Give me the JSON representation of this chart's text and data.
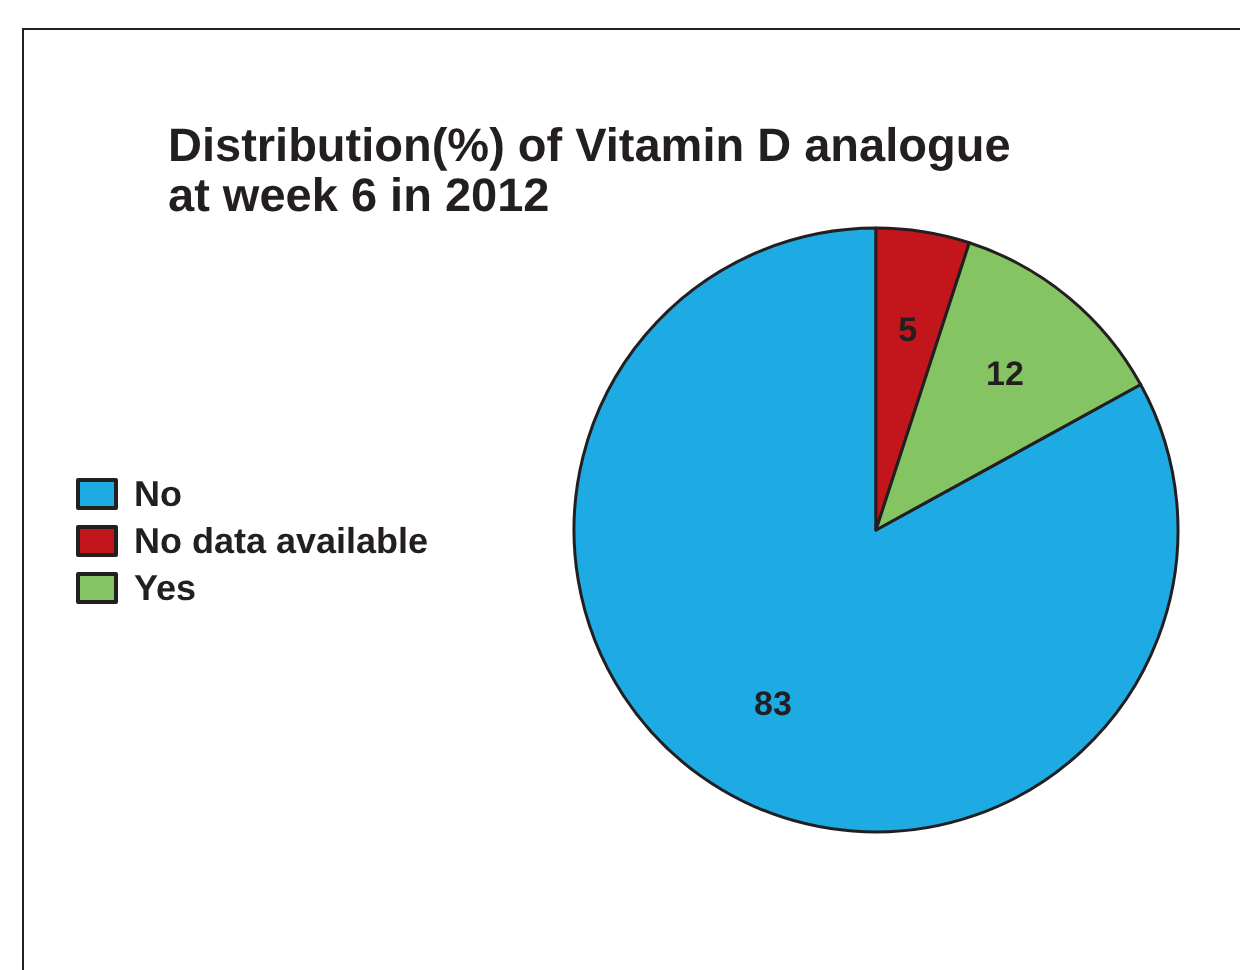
{
  "chart_data": {
    "type": "pie",
    "title": "Distribution(%) of Vitamin D analogue\nat week 6 in 2012",
    "categories": [
      "No",
      "No data available",
      "Yes"
    ],
    "values": [
      83,
      5,
      12
    ],
    "colors": [
      "#1eabe3",
      "#c3161c",
      "#85c463"
    ],
    "data_labels": true,
    "legend": "left"
  }
}
